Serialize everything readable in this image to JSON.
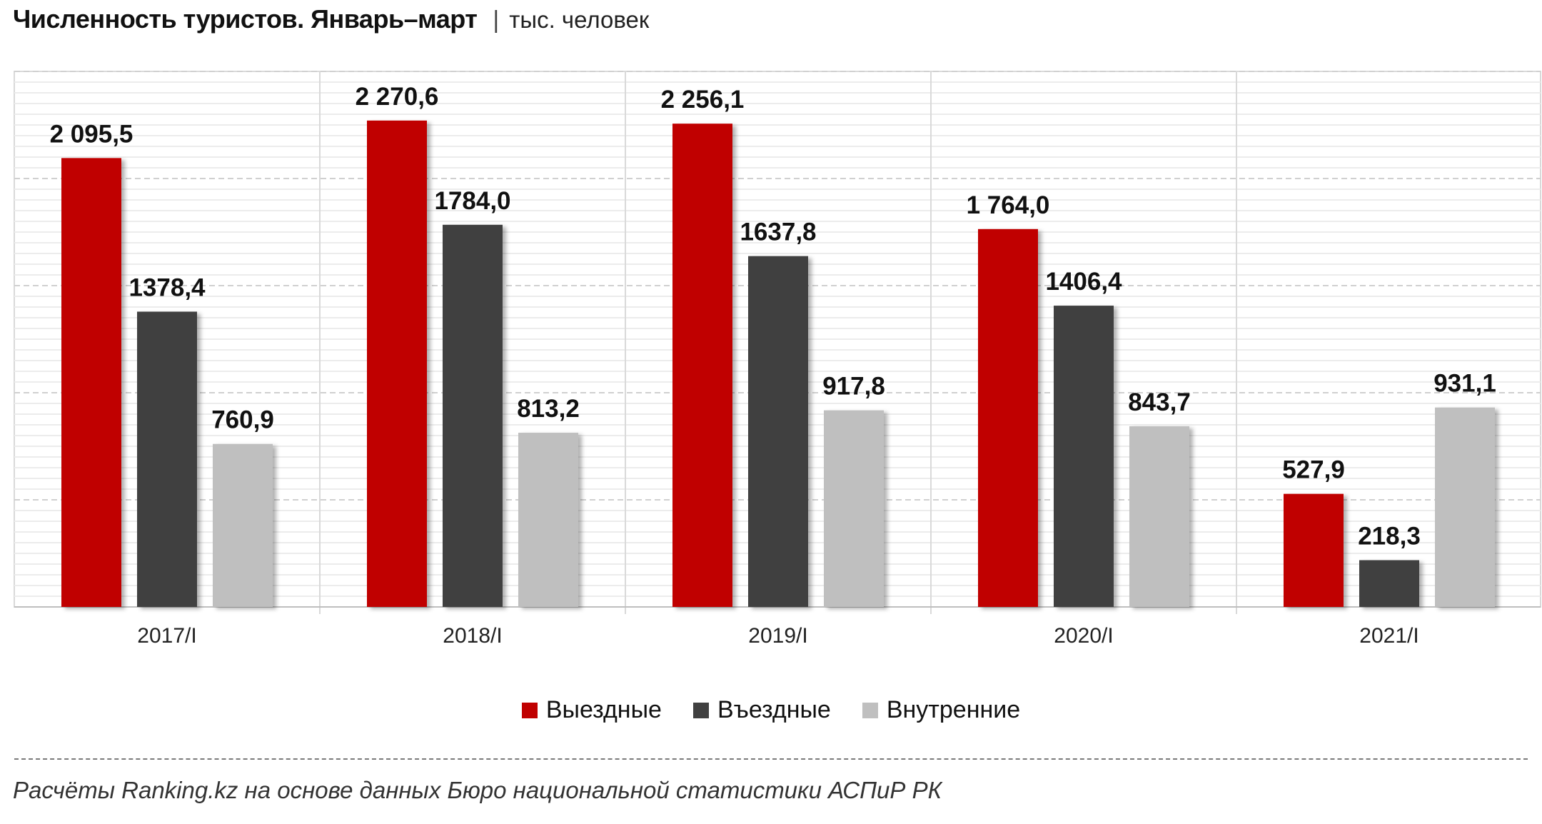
{
  "header": {
    "title": "Численность туристов. Январь–март",
    "separator": "|",
    "unit": "тыс. человек"
  },
  "chart_data": {
    "type": "bar",
    "categories": [
      "2017/I",
      "2018/I",
      "2019/I",
      "2020/I",
      "2021/I"
    ],
    "series": [
      {
        "name": "Выездные",
        "color": "#c00000",
        "values": [
          2095.5,
          2270.6,
          2256.1,
          1764.0,
          527.9
        ],
        "labels": [
          "2 095,5",
          "2 270,6",
          "2 256,1",
          "1 764,0",
          "527,9"
        ]
      },
      {
        "name": "Въездные",
        "color": "#404040",
        "values": [
          1378.4,
          1784.0,
          1637.8,
          1406.4,
          218.3
        ],
        "labels": [
          "1378,4",
          "1784,0",
          "1637,8",
          "1406,4",
          "218,3"
        ]
      },
      {
        "name": "Внутренние",
        "color": "#bfbfbf",
        "values": [
          760.9,
          813.2,
          917.8,
          843.7,
          931.1
        ],
        "labels": [
          "760,9",
          "813,2",
          "917,8",
          "843,7",
          "931,1"
        ]
      }
    ],
    "ylim": [
      0,
      2500
    ],
    "grid": true,
    "legend_position": "bottom"
  },
  "footer": {
    "source": "Расчёты Ranking.kz на основе данных Бюро национальной статистики АСПиР РК"
  }
}
